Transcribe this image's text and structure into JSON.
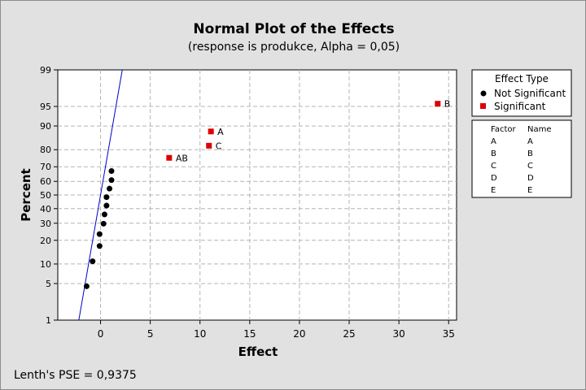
{
  "chart_data": {
    "type": "scatter",
    "title": "Normal Plot of the Effects",
    "subtitle": "(response is produkce, Alpha = 0,05)",
    "xlabel": "Effect",
    "ylabel": "Percent",
    "xlim": [
      -4.3,
      35.8
    ],
    "ylim": [
      1,
      99
    ],
    "yscale": "normal-probability",
    "x_ticks": [
      0,
      5,
      10,
      15,
      20,
      25,
      30,
      35
    ],
    "y_ticks": [
      1,
      5,
      10,
      20,
      30,
      40,
      50,
      60,
      70,
      80,
      90,
      95,
      99
    ],
    "grid": true,
    "reference_line": {
      "x_at_50": 0.0,
      "slope_effect_per_z": 0.94,
      "color": "#0000cc"
    },
    "series": [
      {
        "name": "Not Significant",
        "marker": "circle",
        "color": "#000000",
        "points": [
          {
            "x": -1.4,
            "y": 4.5
          },
          {
            "x": -0.8,
            "y": 10.9
          },
          {
            "x": -0.1,
            "y": 17.2
          },
          {
            "x": -0.1,
            "y": 23.4
          },
          {
            "x": 0.3,
            "y": 29.7
          },
          {
            "x": 0.4,
            "y": 35.9
          },
          {
            "x": 0.6,
            "y": 42.2
          },
          {
            "x": 0.6,
            "y": 48.4
          },
          {
            "x": 0.9,
            "y": 54.7
          },
          {
            "x": 1.1,
            "y": 60.9
          },
          {
            "x": 1.1,
            "y": 67.2
          }
        ]
      },
      {
        "name": "Significant",
        "marker": "square",
        "color": "#dd0000",
        "points": [
          {
            "label": "AB",
            "x": 6.9,
            "y": 75.5
          },
          {
            "label": "C",
            "x": 10.9,
            "y": 82.0
          },
          {
            "label": "A",
            "x": 11.1,
            "y": 88.1
          },
          {
            "label": "B",
            "x": 33.9,
            "y": 95.5
          }
        ]
      }
    ],
    "legend": {
      "placement": "right",
      "title": "Effect Type",
      "items": [
        "Not Significant",
        "Significant"
      ]
    },
    "factor_table": {
      "headers": [
        "Factor",
        "Name"
      ],
      "rows": [
        [
          "A",
          "A"
        ],
        [
          "B",
          "B"
        ],
        [
          "C",
          "C"
        ],
        [
          "D",
          "D"
        ],
        [
          "E",
          "E"
        ]
      ]
    },
    "footer": "Lenth's PSE = 0,9375"
  }
}
